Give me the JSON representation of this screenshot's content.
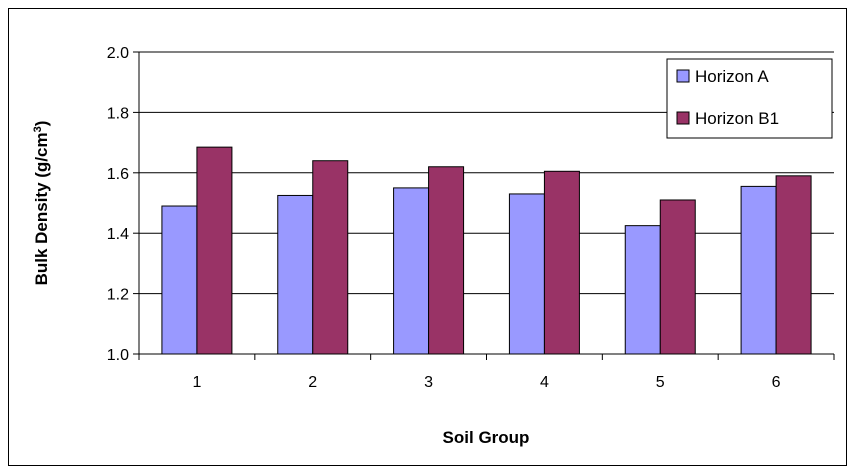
{
  "chart_data": {
    "type": "bar",
    "title": "",
    "xlabel": "Soil Group",
    "ylabel_main": "Bulk Density (g/cm",
    "ylabel_sup": "3",
    "ylabel_tail": ")",
    "categories": [
      "1",
      "2",
      "3",
      "4",
      "5",
      "6"
    ],
    "ylim": [
      1.0,
      2.0
    ],
    "yticks": [
      "1.0",
      "1.2",
      "1.4",
      "1.6",
      "1.8",
      "2.0"
    ],
    "grid": true,
    "legend_position": "top-right",
    "series": [
      {
        "name": "Horizon A",
        "color": "#9999ff",
        "values": [
          1.49,
          1.525,
          1.55,
          1.53,
          1.425,
          1.555
        ]
      },
      {
        "name": "Horizon B1",
        "color": "#993366",
        "values": [
          1.685,
          1.64,
          1.62,
          1.605,
          1.51,
          1.59
        ]
      }
    ]
  }
}
